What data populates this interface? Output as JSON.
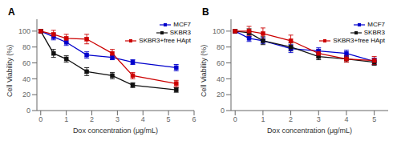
{
  "chart_data": [
    {
      "type": "line",
      "title": "A",
      "xlabel": "Dox concentration (μg/mL)",
      "ylabel": "Cell Viability (%)",
      "xlim": [
        -0.15,
        6.0
      ],
      "ylim": [
        0,
        115
      ],
      "xticks": [
        0,
        1,
        2,
        3,
        4,
        5,
        6
      ],
      "yticks": [
        0,
        20,
        40,
        60,
        80,
        100
      ],
      "grid": false,
      "legend": "upper right",
      "marker": "square",
      "series": [
        {
          "name": "MCF7",
          "color": "#0000cc",
          "x": [
            0,
            0.5,
            1.0,
            1.8,
            2.8,
            3.6,
            5.3
          ],
          "values": [
            100,
            93,
            86,
            70,
            67,
            61,
            54
          ],
          "yerr": [
            2,
            4,
            4,
            4,
            3,
            3,
            4
          ]
        },
        {
          "name": "SKBR3",
          "color": "#111111",
          "x": [
            0,
            0.5,
            1.0,
            1.8,
            2.8,
            3.6,
            5.3
          ],
          "values": [
            100,
            72,
            65,
            49,
            44,
            32,
            26
          ],
          "yerr": [
            2,
            5,
            4,
            5,
            4,
            3,
            3
          ]
        },
        {
          "name": "SKBR3+free HApt",
          "color": "#cc0000",
          "x": [
            0,
            0.5,
            1.0,
            1.8,
            2.8,
            3.6,
            5.3
          ],
          "values": [
            100,
            96,
            91,
            90,
            72,
            44,
            34
          ],
          "yerr": [
            2,
            5,
            5,
            6,
            5,
            4,
            4
          ]
        }
      ]
    },
    {
      "type": "line",
      "title": "B",
      "xlabel": "Dox concentration (μg/mL)",
      "ylabel": "Cell Viability (%)",
      "xlim": [
        -0.15,
        5.5
      ],
      "ylim": [
        0,
        115
      ],
      "xticks": [
        0,
        1,
        2,
        3,
        4,
        5
      ],
      "yticks": [
        0,
        20,
        40,
        60,
        80,
        100
      ],
      "grid": false,
      "legend": "upper right",
      "marker": "square",
      "series": [
        {
          "name": "MCF7",
          "color": "#0000cc",
          "x": [
            0,
            0.5,
            1.0,
            2.0,
            3.0,
            4.0,
            5.0
          ],
          "values": [
            100,
            91,
            88,
            78,
            75,
            72,
            62
          ],
          "yerr": [
            2,
            4,
            4,
            5,
            4,
            4,
            4
          ]
        },
        {
          "name": "SKBR3",
          "color": "#111111",
          "x": [
            0,
            0.5,
            1.0,
            2.0,
            3.0,
            4.0,
            5.0
          ],
          "values": [
            100,
            98,
            88,
            80,
            68,
            65,
            61
          ],
          "yerr": [
            2,
            5,
            5,
            5,
            4,
            4,
            4
          ]
        },
        {
          "name": "SKBR3+free HApt",
          "color": "#cc0000",
          "x": [
            0,
            0.5,
            1.0,
            2.0,
            3.0,
            4.0,
            5.0
          ],
          "values": [
            100,
            100,
            97,
            88,
            72,
            65,
            63
          ],
          "yerr": [
            2,
            6,
            7,
            7,
            5,
            4,
            5
          ]
        }
      ]
    }
  ]
}
